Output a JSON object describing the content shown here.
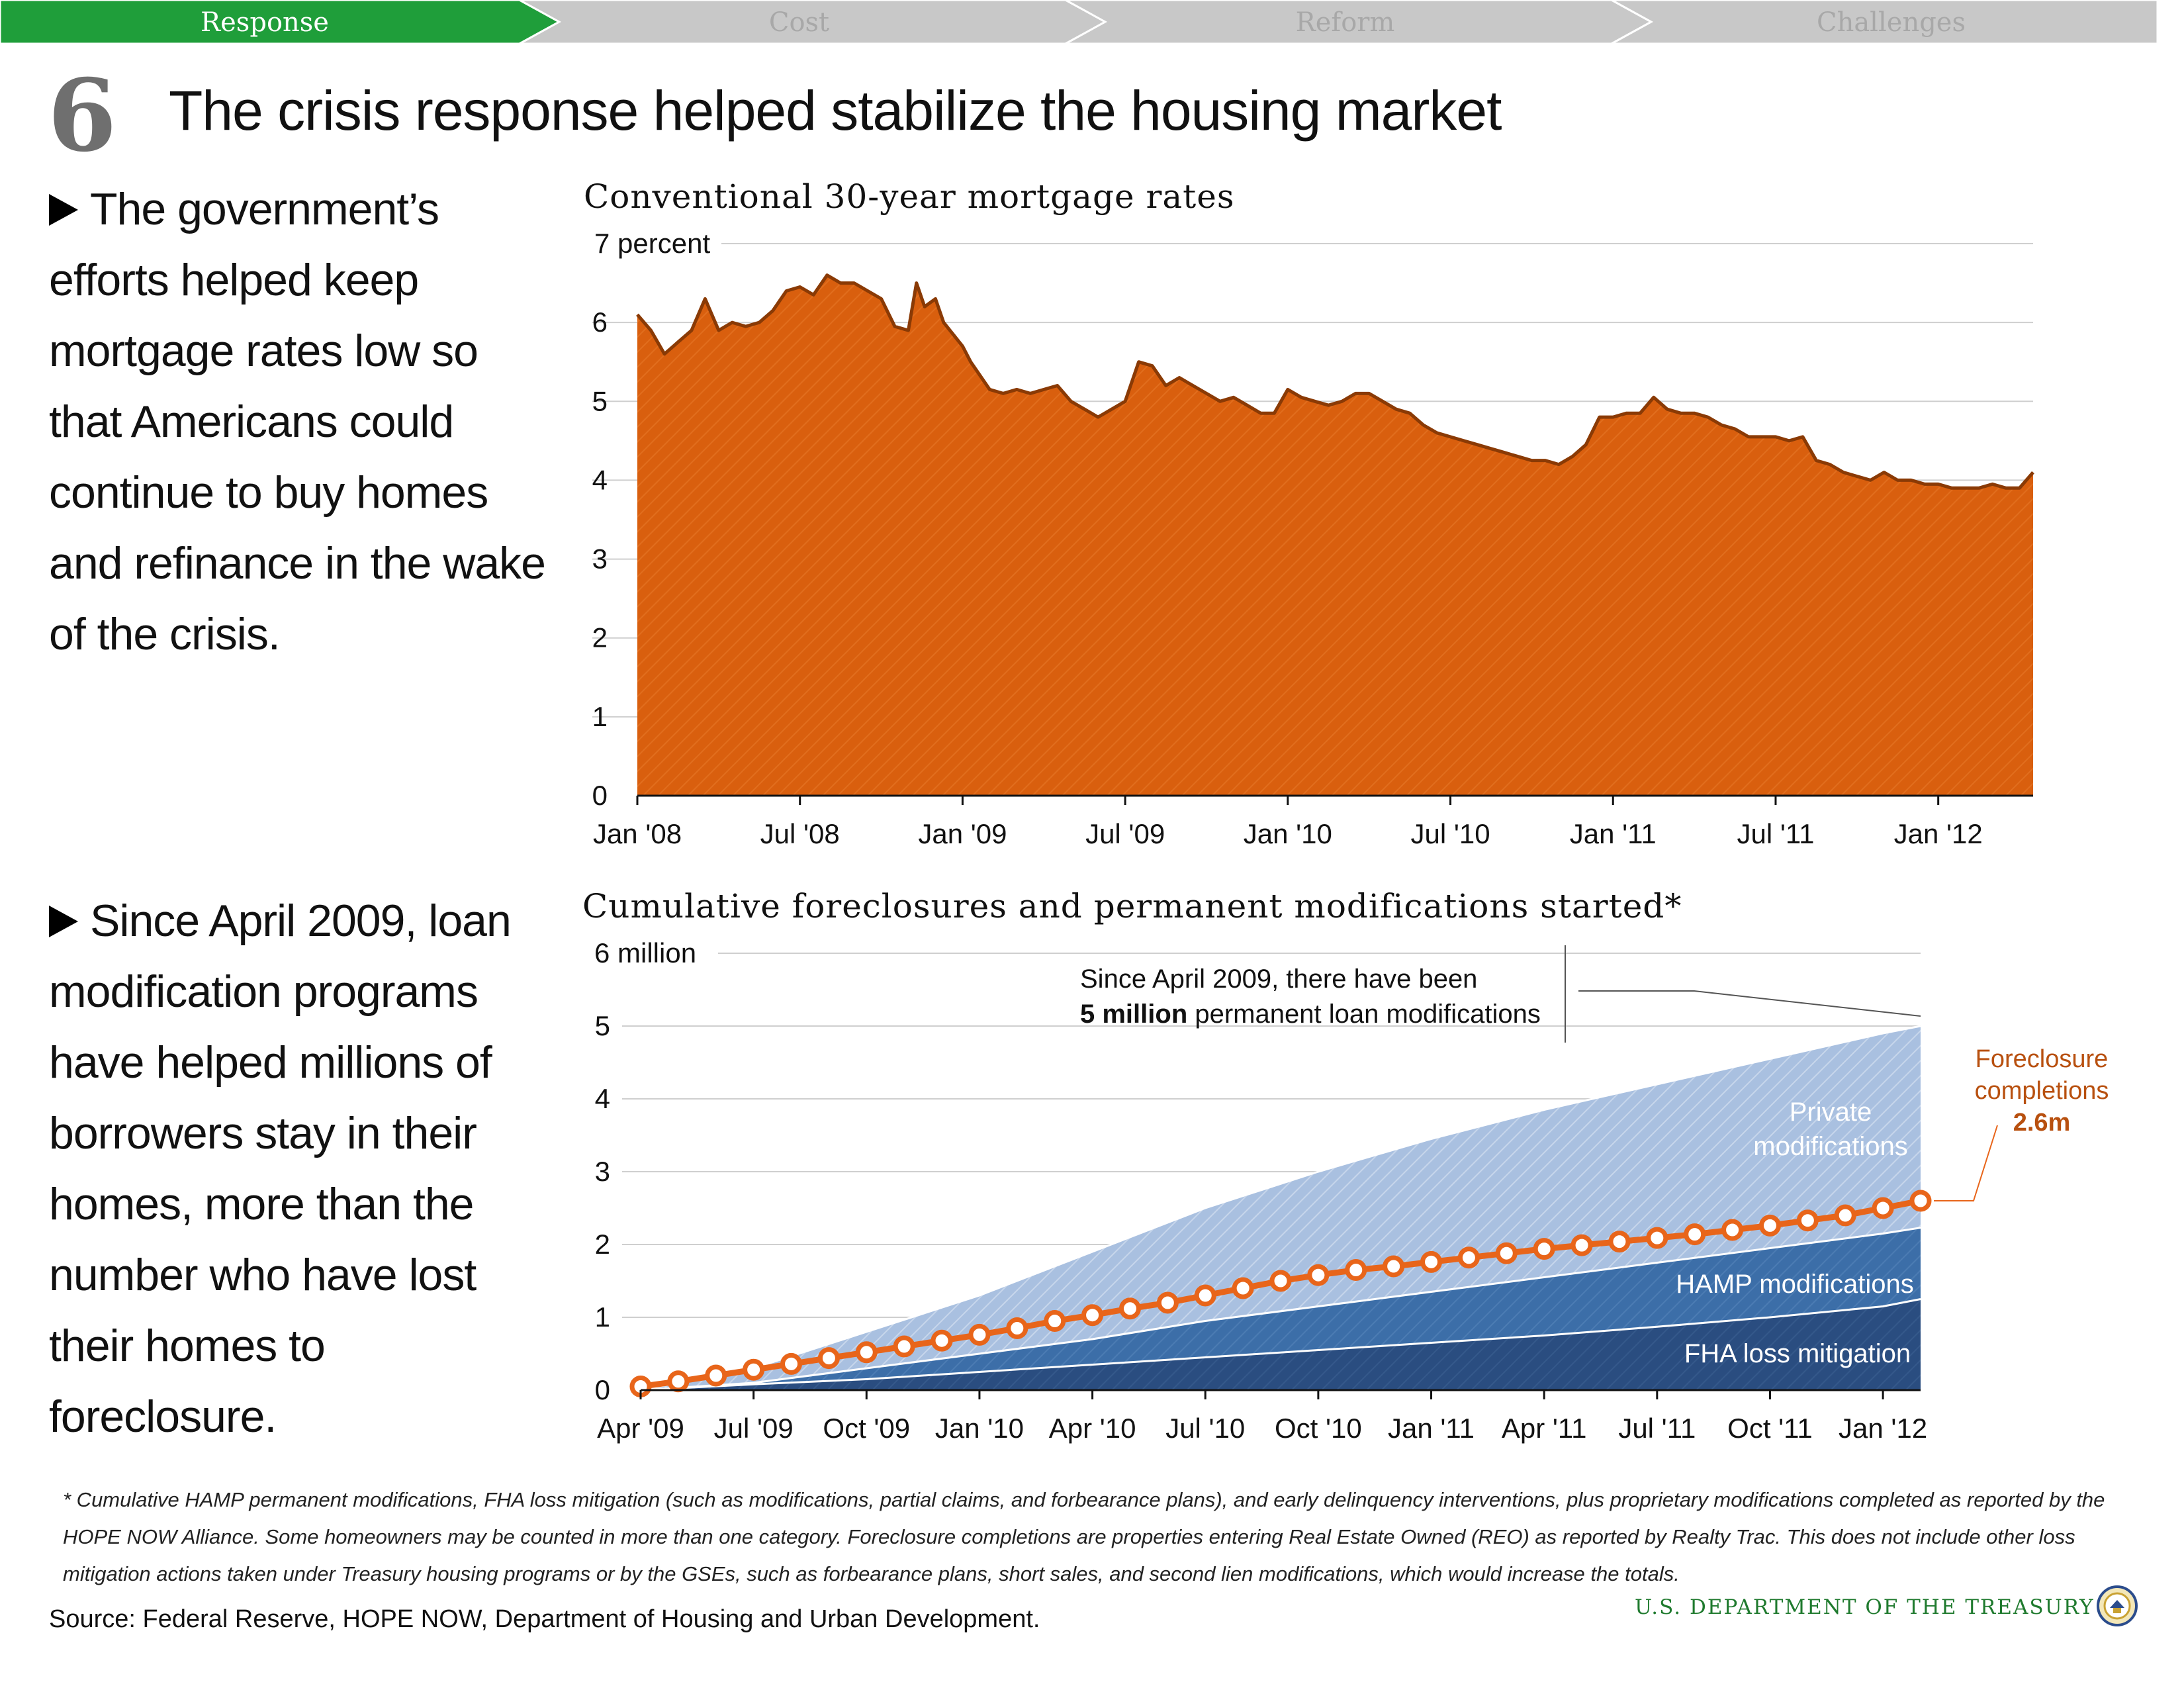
{
  "nav": {
    "tabs": [
      {
        "label": "Response",
        "active": true
      },
      {
        "label": "Cost",
        "active": false
      },
      {
        "label": "Reform",
        "active": false
      },
      {
        "label": "Challenges",
        "active": false
      }
    ],
    "active_color": "#1f9e3a",
    "inactive_color": "#c8c8c8"
  },
  "header": {
    "number": "6",
    "title": "The crisis response helped stabilize the housing market"
  },
  "bullets": [
    "The government’s efforts helped keep mortgage rates low so that Americans could continue to buy homes and refinance in the wake of the crisis.",
    "Since April 2009, loan modification programs have helped millions of borrowers stay in their homes, more than the number who have lost their homes to foreclosure."
  ],
  "chart_data": [
    {
      "type": "area",
      "title": "Conventional 30-year mortgage rates",
      "ylabel": "",
      "ylim": [
        0,
        7
      ],
      "yticks": [
        "0",
        "1",
        "2",
        "3",
        "4",
        "5",
        "6",
        "7 percent"
      ],
      "xticks": [
        "Jan '08",
        "Jul '08",
        "Jan '09",
        "Jul '09",
        "Jan '10",
        "Jul '10",
        "Jan '11",
        "Jul '11",
        "Jan '12"
      ],
      "x_unit": "months since Jan 2008",
      "color": "#d95f0e",
      "series": [
        {
          "name": "",
          "points": [
            [
              0,
              6.1
            ],
            [
              0.5,
              5.9
            ],
            [
              1,
              5.6
            ],
            [
              1.5,
              5.75
            ],
            [
              2,
              5.9
            ],
            [
              2.5,
              6.3
            ],
            [
              3,
              5.9
            ],
            [
              3.5,
              6.0
            ],
            [
              4,
              5.95
            ],
            [
              4.5,
              6.0
            ],
            [
              5,
              6.15
            ],
            [
              5.5,
              6.4
            ],
            [
              6,
              6.45
            ],
            [
              6.5,
              6.35
            ],
            [
              7,
              6.6
            ],
            [
              7.5,
              6.5
            ],
            [
              8,
              6.5
            ],
            [
              8.5,
              6.4
            ],
            [
              9,
              6.3
            ],
            [
              9.5,
              5.95
            ],
            [
              10,
              5.9
            ],
            [
              10.3,
              6.5
            ],
            [
              10.6,
              6.2
            ],
            [
              11,
              6.3
            ],
            [
              11.3,
              6.0
            ],
            [
              12,
              5.7
            ],
            [
              12.3,
              5.5
            ],
            [
              13,
              5.15
            ],
            [
              13.5,
              5.1
            ],
            [
              14,
              5.15
            ],
            [
              14.5,
              5.1
            ],
            [
              15,
              5.15
            ],
            [
              15.5,
              5.2
            ],
            [
              16,
              5.0
            ],
            [
              16.5,
              4.9
            ],
            [
              17,
              4.8
            ],
            [
              17.5,
              4.9
            ],
            [
              18,
              5.0
            ],
            [
              18.5,
              5.5
            ],
            [
              19,
              5.45
            ],
            [
              19.5,
              5.2
            ],
            [
              20,
              5.3
            ],
            [
              20.5,
              5.2
            ],
            [
              21,
              5.1
            ],
            [
              21.5,
              5.0
            ],
            [
              22,
              5.05
            ],
            [
              22.5,
              4.95
            ],
            [
              23,
              4.85
            ],
            [
              23.5,
              4.85
            ],
            [
              24,
              5.15
            ],
            [
              24.5,
              5.05
            ],
            [
              25,
              5.0
            ],
            [
              25.5,
              4.95
            ],
            [
              26,
              5.0
            ],
            [
              26.5,
              5.1
            ],
            [
              27,
              5.1
            ],
            [
              27.5,
              5.0
            ],
            [
              28,
              4.9
            ],
            [
              28.5,
              4.85
            ],
            [
              29,
              4.7
            ],
            [
              29.5,
              4.6
            ],
            [
              30,
              4.55
            ],
            [
              30.5,
              4.5
            ],
            [
              31,
              4.45
            ],
            [
              31.5,
              4.4
            ],
            [
              32,
              4.35
            ],
            [
              32.5,
              4.3
            ],
            [
              33,
              4.25
            ],
            [
              33.5,
              4.25
            ],
            [
              34,
              4.2
            ],
            [
              34.5,
              4.3
            ],
            [
              35,
              4.45
            ],
            [
              35.5,
              4.8
            ],
            [
              36,
              4.8
            ],
            [
              36.5,
              4.85
            ],
            [
              37,
              4.85
            ],
            [
              37.5,
              5.05
            ],
            [
              38,
              4.9
            ],
            [
              38.5,
              4.85
            ],
            [
              39,
              4.85
            ],
            [
              39.5,
              4.8
            ],
            [
              40,
              4.7
            ],
            [
              40.5,
              4.65
            ],
            [
              41,
              4.55
            ],
            [
              41.5,
              4.55
            ],
            [
              42,
              4.55
            ],
            [
              42.5,
              4.5
            ],
            [
              43,
              4.55
            ],
            [
              43.5,
              4.25
            ],
            [
              44,
              4.2
            ],
            [
              44.5,
              4.1
            ],
            [
              45,
              4.05
            ],
            [
              45.5,
              4.0
            ],
            [
              46,
              4.1
            ],
            [
              46.5,
              4.0
            ],
            [
              47,
              4.0
            ],
            [
              47.5,
              3.95
            ],
            [
              48,
              3.95
            ],
            [
              48.5,
              3.9
            ],
            [
              49,
              3.9
            ],
            [
              49.5,
              3.9
            ],
            [
              50,
              3.95
            ],
            [
              50.5,
              3.9
            ],
            [
              51,
              3.9
            ],
            [
              51.5,
              4.1
            ]
          ]
        }
      ]
    },
    {
      "type": "area",
      "title": "Cumulative foreclosures and permanent modifications started*",
      "ylabel": "",
      "ylim": [
        0,
        6
      ],
      "yticks": [
        "0",
        "1",
        "2",
        "3",
        "4",
        "5",
        "6 million"
      ],
      "xticks": [
        "Apr '09",
        "Jul '09",
        "Oct '09",
        "Jan '10",
        "Apr '10",
        "Jul '10",
        "Oct '10",
        "Jan '11",
        "Apr '11",
        "Jul '11",
        "Oct '11",
        "Jan '12"
      ],
      "x_unit": "months since Apr 2009",
      "series": [
        {
          "name": "FHA loss mitigation",
          "color": "#2a4d80",
          "x": [
            0,
            3,
            6,
            9,
            12,
            15,
            18,
            21,
            24,
            27,
            30,
            33,
            34
          ],
          "values": [
            0,
            0.08,
            0.15,
            0.25,
            0.35,
            0.45,
            0.55,
            0.65,
            0.75,
            0.87,
            1.0,
            1.15,
            1.25
          ]
        },
        {
          "name": "HAMP modifications",
          "color": "#3c6ea8",
          "x": [
            0,
            3,
            6,
            9,
            12,
            15,
            18,
            21,
            24,
            27,
            30,
            33,
            34
          ],
          "values": [
            0,
            0.1,
            0.3,
            0.5,
            0.7,
            0.95,
            1.15,
            1.35,
            1.55,
            1.75,
            1.95,
            2.15,
            2.23
          ]
        },
        {
          "name": "Private modifications",
          "color": "#a9c0e0",
          "x": [
            0,
            3,
            6,
            9,
            12,
            15,
            18,
            21,
            24,
            27,
            30,
            33,
            34
          ],
          "values": [
            0,
            0.3,
            0.8,
            1.3,
            1.9,
            2.5,
            3.0,
            3.45,
            3.85,
            4.2,
            4.55,
            4.9,
            5.0
          ]
        },
        {
          "name": "Foreclosure completions",
          "color": "#e8651a",
          "type": "line",
          "x": [
            0,
            1,
            2,
            3,
            4,
            5,
            6,
            7,
            8,
            9,
            10,
            11,
            12,
            13,
            14,
            15,
            16,
            17,
            18,
            19,
            20,
            21,
            22,
            23,
            24,
            25,
            26,
            27,
            28,
            29,
            30,
            31,
            32,
            33,
            34
          ],
          "values": [
            0.05,
            0.12,
            0.2,
            0.28,
            0.36,
            0.44,
            0.52,
            0.6,
            0.68,
            0.76,
            0.85,
            0.95,
            1.03,
            1.12,
            1.2,
            1.3,
            1.4,
            1.5,
            1.58,
            1.65,
            1.7,
            1.76,
            1.82,
            1.88,
            1.94,
            1.99,
            2.04,
            2.09,
            2.14,
            2.2,
            2.26,
            2.33,
            2.4,
            2.5,
            2.6
          ]
        }
      ],
      "annotations": {
        "callout_line1": "Since April 2009, there have been",
        "callout_bold": "5 million",
        "callout_rest": " permanent loan modifications",
        "foreclosure_label_1": "Foreclosure",
        "foreclosure_label_2": "completions",
        "foreclosure_value": "2.6m",
        "private_1": "Private",
        "private_2": "modifications",
        "hamp": "HAMP modifications",
        "fha": "FHA loss mitigation"
      }
    }
  ],
  "footnote": "* Cumulative HAMP permanent modifications, FHA loss mitigation (such as modifications, partial claims, and forbearance plans), and early delinquency interventions, plus proprietary modifications completed as reported by the HOPE NOW Alliance. Some homeowners may be counted in more than one category. Foreclosure completions are properties entering Real Estate Owned (REO) as reported by Realty Trac. This does not include other loss mitigation actions taken under Treasury housing programs  or by the GSEs, such as forbearance plans, short sales, and second lien modifications, which would increase the totals.",
  "source": "Source: Federal Reserve, HOPE NOW, Department of Housing and Urban Development.",
  "branding": {
    "department": "U.S. DEPARTMENT OF THE TREASURY",
    "color": "#1f7a2e"
  }
}
